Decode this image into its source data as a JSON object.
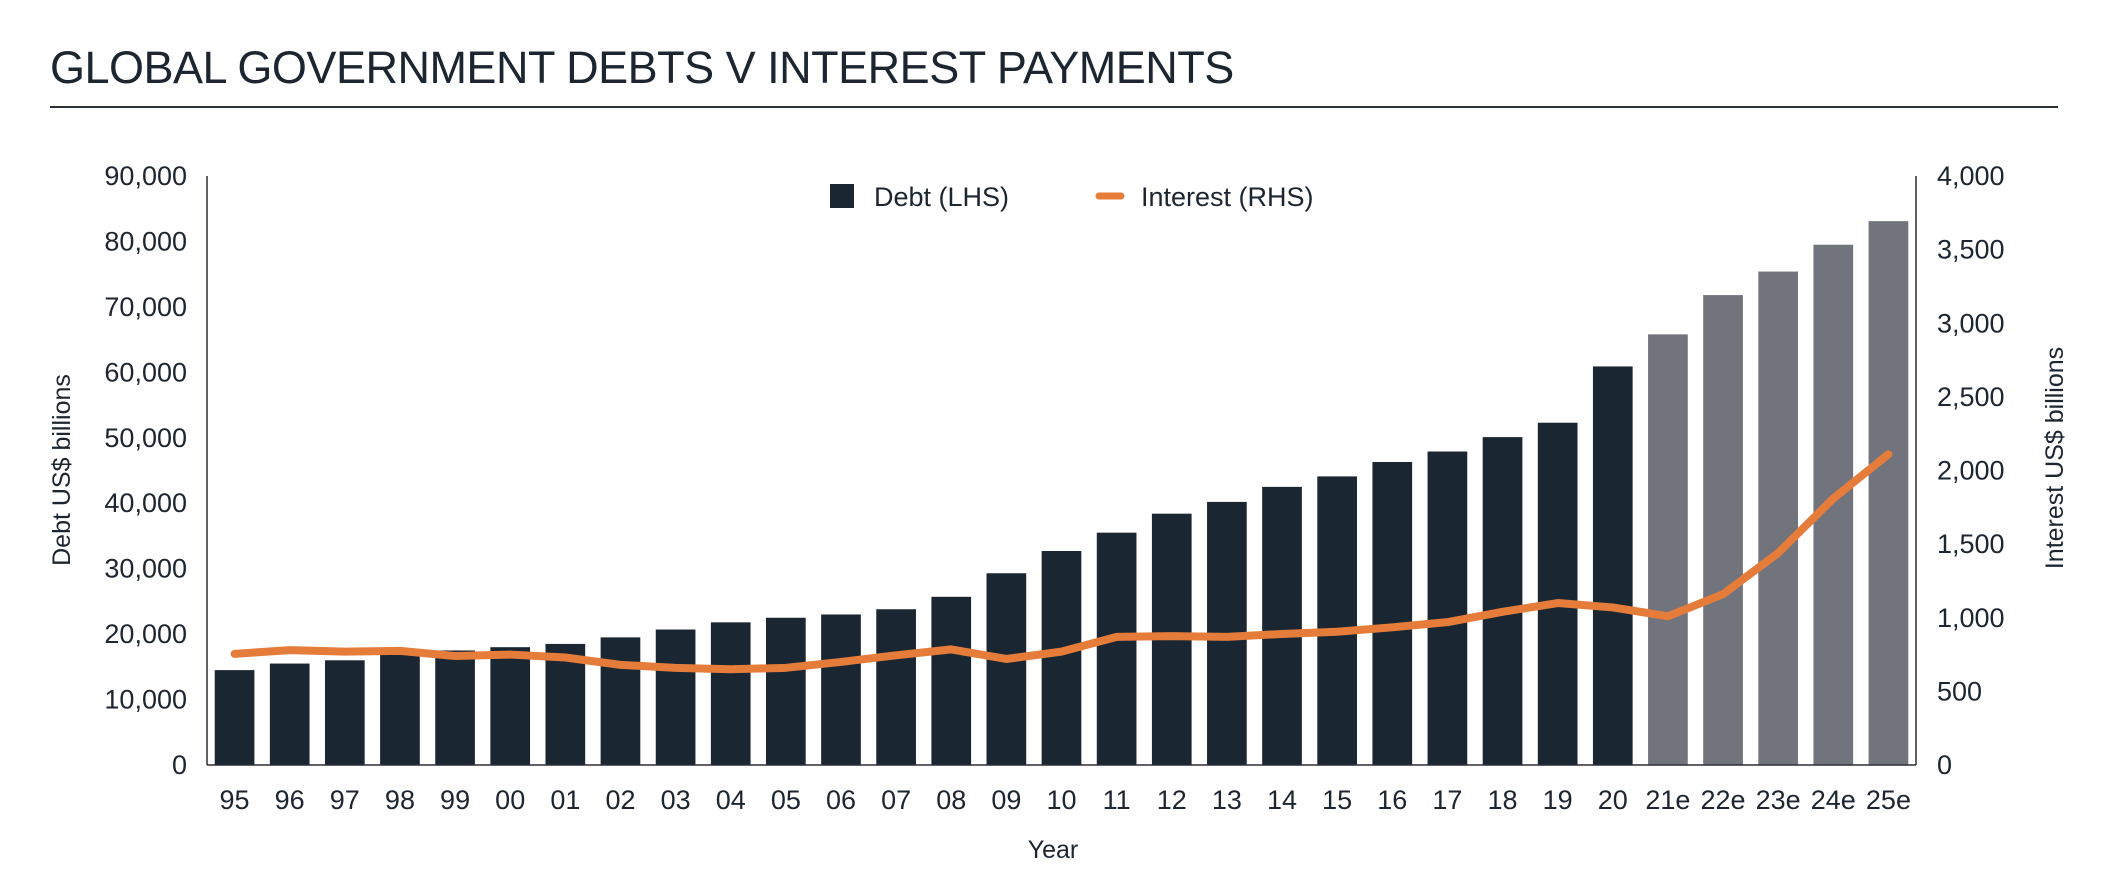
{
  "title": "GLOBAL GOVERNMENT DEBTS V INTEREST PAYMENTS",
  "chart_data": {
    "type": "bar",
    "title": "GLOBAL GOVERNMENT DEBTS V INTEREST PAYMENTS",
    "xlabel": "Year",
    "ylabel": "Debt US$ billions",
    "y2label": "Interest US$ billions",
    "categories": [
      "95",
      "96",
      "97",
      "98",
      "99",
      "00",
      "01",
      "02",
      "03",
      "04",
      "05",
      "06",
      "07",
      "08",
      "09",
      "10",
      "11",
      "12",
      "13",
      "14",
      "15",
      "16",
      "17",
      "18",
      "19",
      "20",
      "21e",
      "22e",
      "23e",
      "24e",
      "25e"
    ],
    "ylim": [
      0,
      90000
    ],
    "y2lim": [
      0,
      4000
    ],
    "yticks": [
      "0",
      "10,000",
      "20,000",
      "30,000",
      "40,000",
      "50,000",
      "60,000",
      "70,000",
      "80,000",
      "90,000"
    ],
    "y2ticks": [
      "0",
      "500",
      "1,000",
      "1,500",
      "2,000",
      "2,500",
      "3,000",
      "3,500",
      "4,000"
    ],
    "legend_position": "top-center",
    "grid": false,
    "colors": {
      "actual": "#1b2633",
      "estimate": "#71737d",
      "interest": "#e57c3a"
    },
    "series": [
      {
        "name": "Debt (LHS)",
        "type": "bar",
        "axis": "left",
        "values": [
          14500,
          15500,
          16000,
          17000,
          17500,
          18000,
          18500,
          19500,
          20700,
          21800,
          22500,
          23000,
          23800,
          25700,
          29300,
          32700,
          35500,
          38400,
          40200,
          42500,
          44100,
          46300,
          47900,
          50100,
          52300,
          60900,
          65800,
          71800,
          75400,
          79500,
          83100
        ],
        "estimate_from_index": 26
      },
      {
        "name": "Interest (RHS)",
        "type": "line",
        "axis": "right",
        "values": [
          755,
          780,
          770,
          775,
          740,
          750,
          730,
          680,
          660,
          650,
          660,
          700,
          745,
          785,
          720,
          770,
          870,
          875,
          870,
          890,
          905,
          935,
          970,
          1040,
          1100,
          1070,
          1010,
          1160,
          1440,
          1810,
          2110
        ]
      }
    ]
  }
}
